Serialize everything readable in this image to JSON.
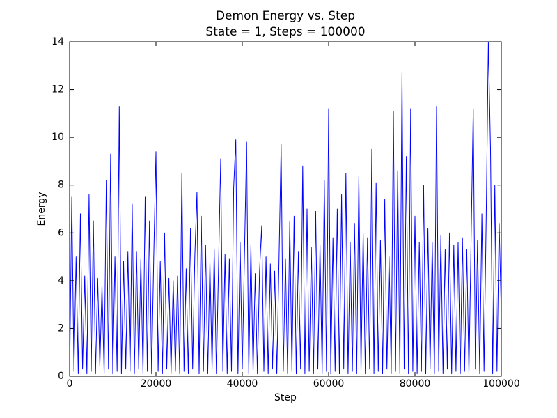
{
  "chart_data": {
    "type": "line",
    "title": "Demon Energy vs. Step",
    "subtitle": "State = 1, Steps = 100000",
    "x_label": "Step",
    "y_label": "Energy",
    "color": "#0000ff",
    "x": [
      0,
      500,
      1000,
      1500,
      2000,
      2500,
      3000,
      3500,
      4000,
      4500,
      5000,
      5500,
      6000,
      6500,
      7000,
      7500,
      8000,
      8500,
      9000,
      9500,
      10000,
      10500,
      11000,
      11500,
      12000,
      12500,
      13000,
      13500,
      14000,
      14500,
      15000,
      15500,
      16000,
      16500,
      17000,
      17500,
      18000,
      18500,
      19000,
      19500,
      20000,
      20500,
      21000,
      21500,
      22000,
      22500,
      23000,
      23500,
      24000,
      24500,
      25000,
      25500,
      26000,
      26500,
      27000,
      27500,
      28000,
      28500,
      29000,
      29500,
      30000,
      30500,
      31000,
      31500,
      32000,
      32500,
      33000,
      33500,
      34000,
      34500,
      35000,
      35500,
      36000,
      36500,
      37000,
      37500,
      38000,
      38500,
      39000,
      39500,
      40000,
      40500,
      41000,
      41500,
      42000,
      42500,
      43000,
      43500,
      44000,
      44500,
      45000,
      45500,
      46000,
      46500,
      47000,
      47500,
      48000,
      48500,
      49000,
      49500,
      50000,
      50500,
      51000,
      51500,
      52000,
      52500,
      53000,
      53500,
      54000,
      54500,
      55000,
      55500,
      56000,
      56500,
      57000,
      57500,
      58000,
      58500,
      59000,
      59500,
      60000,
      60500,
      61000,
      61500,
      62000,
      62500,
      63000,
      63500,
      64000,
      64500,
      65000,
      65500,
      66000,
      66500,
      67000,
      67500,
      68000,
      68500,
      69000,
      69500,
      70000,
      70500,
      71000,
      71500,
      72000,
      72500,
      73000,
      73500,
      74000,
      74500,
      75000,
      75500,
      76000,
      76500,
      77000,
      77500,
      78000,
      78500,
      79000,
      79500,
      80000,
      80500,
      81000,
      81500,
      82000,
      82500,
      83000,
      83500,
      84000,
      84500,
      85000,
      85500,
      86000,
      86500,
      87000,
      87500,
      88000,
      88500,
      89000,
      89500,
      90000,
      90500,
      91000,
      91500,
      92000,
      92500,
      93000,
      93500,
      94000,
      94500,
      95000,
      95500,
      96000,
      96500,
      97000,
      97500,
      98000,
      98500,
      99000,
      99500,
      100000
    ],
    "values": [
      0,
      7.5,
      0.2,
      5.0,
      0.1,
      6.8,
      0.3,
      4.2,
      0.1,
      7.6,
      0.2,
      6.5,
      0.1,
      4.1,
      0.4,
      3.8,
      0.1,
      8.2,
      0.3,
      9.3,
      0.1,
      5.0,
      0.2,
      11.3,
      0.1,
      4.8,
      0.3,
      5.2,
      0.2,
      7.2,
      0.1,
      5.2,
      0.3,
      4.9,
      0.1,
      7.5,
      0.2,
      6.5,
      0.1,
      5.1,
      9.4,
      0.2,
      4.8,
      0.1,
      6.0,
      0.3,
      4.1,
      0.1,
      4.0,
      0.2,
      4.2,
      0.1,
      8.5,
      0.2,
      4.5,
      0.1,
      6.2,
      0.3,
      5.0,
      7.7,
      0.1,
      6.7,
      0.2,
      5.5,
      0.1,
      4.8,
      0.3,
      5.3,
      0.1,
      4.6,
      9.1,
      0.2,
      5.1,
      0.1,
      4.9,
      0.2,
      7.9,
      9.9,
      0.1,
      5.6,
      0.3,
      5.0,
      9.8,
      0.1,
      5.5,
      0.2,
      4.3,
      0.1,
      4.4,
      6.3,
      0.2,
      5.0,
      0.1,
      4.7,
      0.3,
      4.4,
      0.1,
      4.8,
      9.7,
      0.2,
      4.9,
      0.1,
      6.5,
      0.2,
      6.7,
      0.1,
      5.2,
      0.3,
      8.8,
      0.1,
      7.0,
      0.2,
      5.4,
      0.1,
      6.9,
      0.3,
      5.5,
      0.1,
      8.2,
      0.2,
      11.2,
      0.1,
      5.8,
      0.2,
      7.0,
      0.1,
      7.6,
      0.3,
      8.5,
      0.1,
      5.6,
      0.2,
      6.4,
      0.1,
      8.4,
      0.2,
      6.0,
      0.1,
      5.8,
      0.3,
      9.5,
      0.1,
      8.1,
      0.2,
      5.7,
      0.1,
      7.4,
      0.3,
      5.0,
      0.1,
      11.1,
      0.2,
      8.6,
      0.1,
      12.7,
      0.3,
      9.2,
      0.1,
      11.2,
      0.2,
      6.7,
      0.1,
      5.6,
      0.2,
      8.0,
      0.1,
      6.2,
      0.3,
      5.6,
      0.1,
      11.3,
      0.2,
      5.9,
      0.1,
      5.3,
      0.3,
      6.0,
      0.1,
      5.5,
      0.2,
      5.6,
      0.1,
      5.8,
      0.2,
      5.3,
      0.1,
      5.7,
      11.2,
      0.3,
      5.7,
      0.1,
      6.8,
      0.2,
      6.6,
      14.0,
      9.5,
      0.1,
      8.0,
      0.2,
      6.4,
      2.6
    ],
    "xlim": [
      0,
      100000
    ],
    "xticks": [
      0,
      20000,
      40000,
      60000,
      80000,
      100000
    ],
    "ylim": [
      0,
      14
    ],
    "yticks": [
      0,
      2,
      4,
      6,
      8,
      10,
      12,
      14
    ]
  }
}
